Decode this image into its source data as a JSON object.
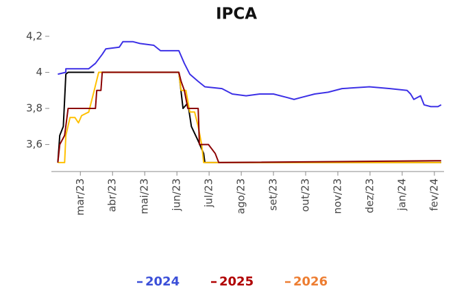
{
  "chart_data": {
    "type": "line",
    "title": "IPCA",
    "xlim": [
      2.1,
      14.3
    ],
    "xticks": [
      {
        "value": 3,
        "label": "mar/23"
      },
      {
        "value": 4,
        "label": "abr/23"
      },
      {
        "value": 5,
        "label": "mai/23"
      },
      {
        "value": 6,
        "label": "jun/23"
      },
      {
        "value": 7,
        "label": "jul/23"
      },
      {
        "value": 8,
        "label": "ago/23"
      },
      {
        "value": 9,
        "label": "set/23"
      },
      {
        "value": 10,
        "label": "out/23"
      },
      {
        "value": 11,
        "label": "nov/23"
      },
      {
        "value": 12,
        "label": "dez/23"
      },
      {
        "value": 13,
        "label": "jan/24"
      },
      {
        "value": 14,
        "label": "fev/24"
      }
    ],
    "ylim": [
      3.45,
      4.23
    ],
    "yticks": [
      {
        "value": 3.6,
        "label": "3,6"
      },
      {
        "value": 3.8,
        "label": "3,8"
      },
      4,
      {
        "value": 4.2,
        "label": "4,2"
      }
    ],
    "series": [
      {
        "name": "2024",
        "color": "#3b2fe6",
        "legend_color": "#3b4fd8",
        "x": [
          2.3,
          2.55,
          2.55,
          3.26,
          3.47,
          3.68,
          3.79,
          4.21,
          4.32,
          4.64,
          4.85,
          5.28,
          5.49,
          6.06,
          6.23,
          6.4,
          6.66,
          6.87,
          7.4,
          7.72,
          8.15,
          8.57,
          9.0,
          9.43,
          9.64,
          9.85,
          10.28,
          10.7,
          11.13,
          11.98,
          12.62,
          13.15,
          13.26,
          13.36,
          13.57,
          13.68,
          13.89,
          14.11,
          14.21
        ],
        "values": [
          3.99,
          4.0,
          4.02,
          4.02,
          4.05,
          4.1,
          4.13,
          4.14,
          4.17,
          4.17,
          4.16,
          4.15,
          4.12,
          4.12,
          4.05,
          3.99,
          3.95,
          3.92,
          3.91,
          3.88,
          3.87,
          3.88,
          3.88,
          3.86,
          3.85,
          3.86,
          3.88,
          3.89,
          3.91,
          3.92,
          3.91,
          3.9,
          3.88,
          3.85,
          3.87,
          3.82,
          3.81,
          3.81,
          3.82
        ]
      },
      {
        "name": "2025",
        "color": "#8b0000",
        "legend_color": "#b00000",
        "x": [
          2.3,
          2.36,
          2.51,
          2.62,
          3.47,
          3.51,
          3.64,
          3.68,
          6.06,
          6.13,
          6.23,
          6.34,
          6.66,
          6.7,
          6.98,
          7.19,
          7.3,
          14.21
        ],
        "values": [
          3.5,
          3.6,
          3.65,
          3.8,
          3.8,
          3.9,
          3.9,
          4.0,
          4.0,
          3.95,
          3.9,
          3.8,
          3.8,
          3.6,
          3.6,
          3.55,
          3.5,
          3.51
        ]
      },
      {
        "name": "2026",
        "color": "#ffc000",
        "legend_color": "#ed7d31",
        "x": [
          2.3,
          2.51,
          2.55,
          2.68,
          2.83,
          2.94,
          3.04,
          3.26,
          3.43,
          3.57,
          6.06,
          6.13,
          6.28,
          6.4,
          6.55,
          6.66,
          6.77,
          6.83,
          14.21
        ],
        "values": [
          3.5,
          3.5,
          3.65,
          3.75,
          3.75,
          3.72,
          3.76,
          3.78,
          3.9,
          4.0,
          4.0,
          3.9,
          3.9,
          3.78,
          3.78,
          3.7,
          3.6,
          3.5,
          3.5
        ]
      },
      {
        "color": "#000000",
        "x": [
          2.3,
          2.36,
          2.47,
          2.55,
          2.62,
          3.43,
          3.5,
          3.64,
          6.06,
          6.19,
          6.34,
          6.45,
          6.66,
          6.83,
          6.87,
          14.21
        ],
        "values": [
          3.5,
          3.65,
          3.7,
          3.99,
          4.0,
          4.0,
          null,
          4.0,
          4.0,
          3.8,
          3.83,
          3.7,
          3.62,
          3.55,
          3.5,
          3.5
        ]
      }
    ]
  }
}
